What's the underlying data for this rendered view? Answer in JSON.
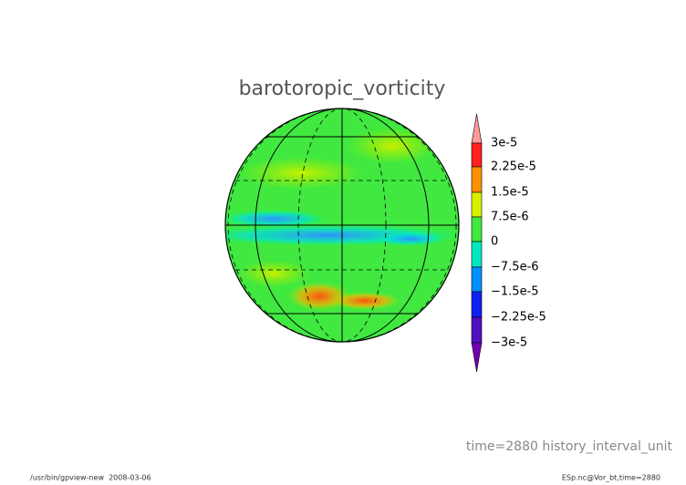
{
  "title": "barotoropic_vorticity",
  "colorbar": {
    "labels": [
      "3e-5",
      "2.25e-5",
      "1.5e-5",
      "7.5e-6",
      "0",
      "−7.5e-6",
      "−1.5e-5",
      "−2.25e-5",
      "−3e-5"
    ]
  },
  "annotation": "time=2880 history_interval_unit",
  "footer": {
    "left": "/usr/bin/gpview-new  2008-03-06",
    "right": "ESp.nc@Vor_bt,time=2880"
  }
}
